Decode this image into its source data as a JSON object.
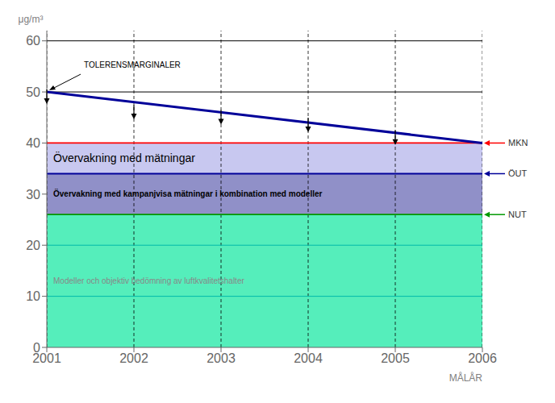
{
  "chart_data": {
    "type": "line",
    "ylabel": "μg/m³",
    "xlabel": "MÅLÅR",
    "x": [
      2001,
      2006
    ],
    "xlim": [
      2001,
      2006
    ],
    "xticks": [
      2001,
      2002,
      2003,
      2004,
      2005,
      2006
    ],
    "ylim": [
      0,
      62
    ],
    "yticks": [
      0,
      10,
      20,
      30,
      40,
      50,
      60
    ],
    "grid": "x",
    "zones": [
      {
        "label": "Övervakning med mätningar",
        "from": 34,
        "to": 40,
        "color": "#c8c8f0"
      },
      {
        "label": "Övervakning med kampanjvisa mätningar i kombination med modeller",
        "from": 26,
        "to": 34,
        "color": "#9090c8"
      },
      {
        "label": "Modeller och objektiv bedömning av luftkvalitetshalter",
        "from": 0,
        "to": 26,
        "color": "#55eebb",
        "label_color": "#888888"
      }
    ],
    "series": [
      {
        "values": [
          10,
          10
        ],
        "color": "#00bbaa"
      },
      {
        "values": [
          20,
          20
        ],
        "color": "#00bbaa"
      },
      {
        "values": [
          60,
          60
        ],
        "color": "#000000"
      },
      {
        "values": [
          50,
          50
        ],
        "color": "#000000"
      },
      {
        "name": "MKN",
        "values": [
          40,
          40
        ],
        "color": "#ff0000"
      },
      {
        "name": "ÖUT",
        "values": [
          34,
          34
        ],
        "color": "#000099"
      },
      {
        "name": "NUT",
        "values": [
          26,
          26
        ],
        "color": "#009900"
      },
      {
        "values": [
          50,
          40
        ],
        "color": "#000099",
        "annotation": "TOLERENSMARGINALER"
      }
    ],
    "arrows": {
      "x": [
        2001,
        2002,
        2003,
        2004,
        2005
      ],
      "values": [
        50.0,
        47.0,
        46.0,
        44.5,
        42.0
      ],
      "color": "#000000"
    }
  }
}
